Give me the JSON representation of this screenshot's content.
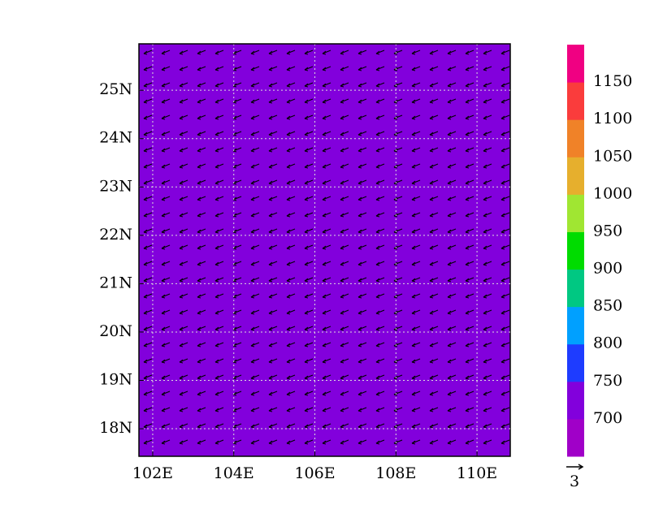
{
  "chart_data": {
    "type": "map",
    "xlim": [
      101.66,
      110.82
    ],
    "ylim": [
      17.43,
      25.96
    ],
    "xticks": [
      {
        "value": 102,
        "label": "102E"
      },
      {
        "value": 104,
        "label": "104E"
      },
      {
        "value": 106,
        "label": "106E"
      },
      {
        "value": 108,
        "label": "108E"
      },
      {
        "value": 110,
        "label": "110E"
      }
    ],
    "yticks": [
      {
        "value": 18,
        "label": "18N"
      },
      {
        "value": 19,
        "label": "19N"
      },
      {
        "value": 20,
        "label": "20N"
      },
      {
        "value": 21,
        "label": "21N"
      },
      {
        "value": 22,
        "label": "22N"
      },
      {
        "value": 23,
        "label": "23N"
      },
      {
        "value": 24,
        "label": "24N"
      },
      {
        "value": 25,
        "label": "25N"
      }
    ],
    "grid": true,
    "colorbar": {
      "lim": [
        650,
        1200
      ],
      "ticks": [
        700,
        750,
        800,
        850,
        900,
        950,
        1000,
        1050,
        1100,
        1150
      ],
      "colors": [
        "#a000c8",
        "#8200dc",
        "#1e3cff",
        "#00a0ff",
        "#00c882",
        "#00dc00",
        "#a0e632",
        "#e6af2d",
        "#f08228",
        "#fa3c3c",
        "#f00082"
      ]
    },
    "reference_vector": 3
  }
}
